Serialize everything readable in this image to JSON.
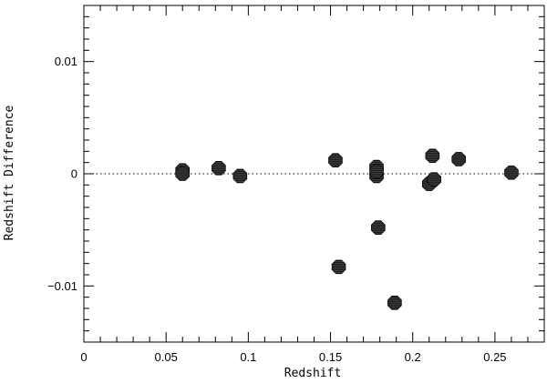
{
  "chart_data": {
    "type": "scatter",
    "title": "",
    "xlabel": "Redshift",
    "ylabel": "Redshift Difference",
    "xlim": [
      0,
      0.28
    ],
    "ylim": [
      -0.015,
      0.015
    ],
    "x_major_ticks": [
      0,
      0.05,
      0.1,
      0.15,
      0.2,
      0.25
    ],
    "x_tick_labels": [
      "0",
      "0.05",
      "0.1",
      "0.15",
      "0.2",
      "0.25"
    ],
    "x_minor_step": 0.01,
    "y_major_ticks": [
      -0.01,
      0,
      0.01
    ],
    "y_tick_labels": [
      "−0.01",
      "0",
      "0.01"
    ],
    "y_minor_step": 0.001,
    "reference_line": {
      "y": 0,
      "style": "dotted"
    },
    "grid": false,
    "legend": "none",
    "marker_color": "#1a1a1a",
    "series": [
      {
        "x": [
          0.06,
          0.06,
          0.082,
          0.095,
          0.153,
          0.155,
          0.178,
          0.178,
          0.178,
          0.179,
          0.189,
          0.21,
          0.212,
          0.213,
          0.228,
          0.26
        ],
        "y": [
          0.0003,
          0.0,
          0.0005,
          -0.0002,
          0.0012,
          -0.0083,
          0.0006,
          -0.0002,
          0.0002,
          -0.0048,
          -0.0115,
          -0.0009,
          0.0016,
          -0.0005,
          0.0013,
          0.0001
        ]
      }
    ]
  }
}
